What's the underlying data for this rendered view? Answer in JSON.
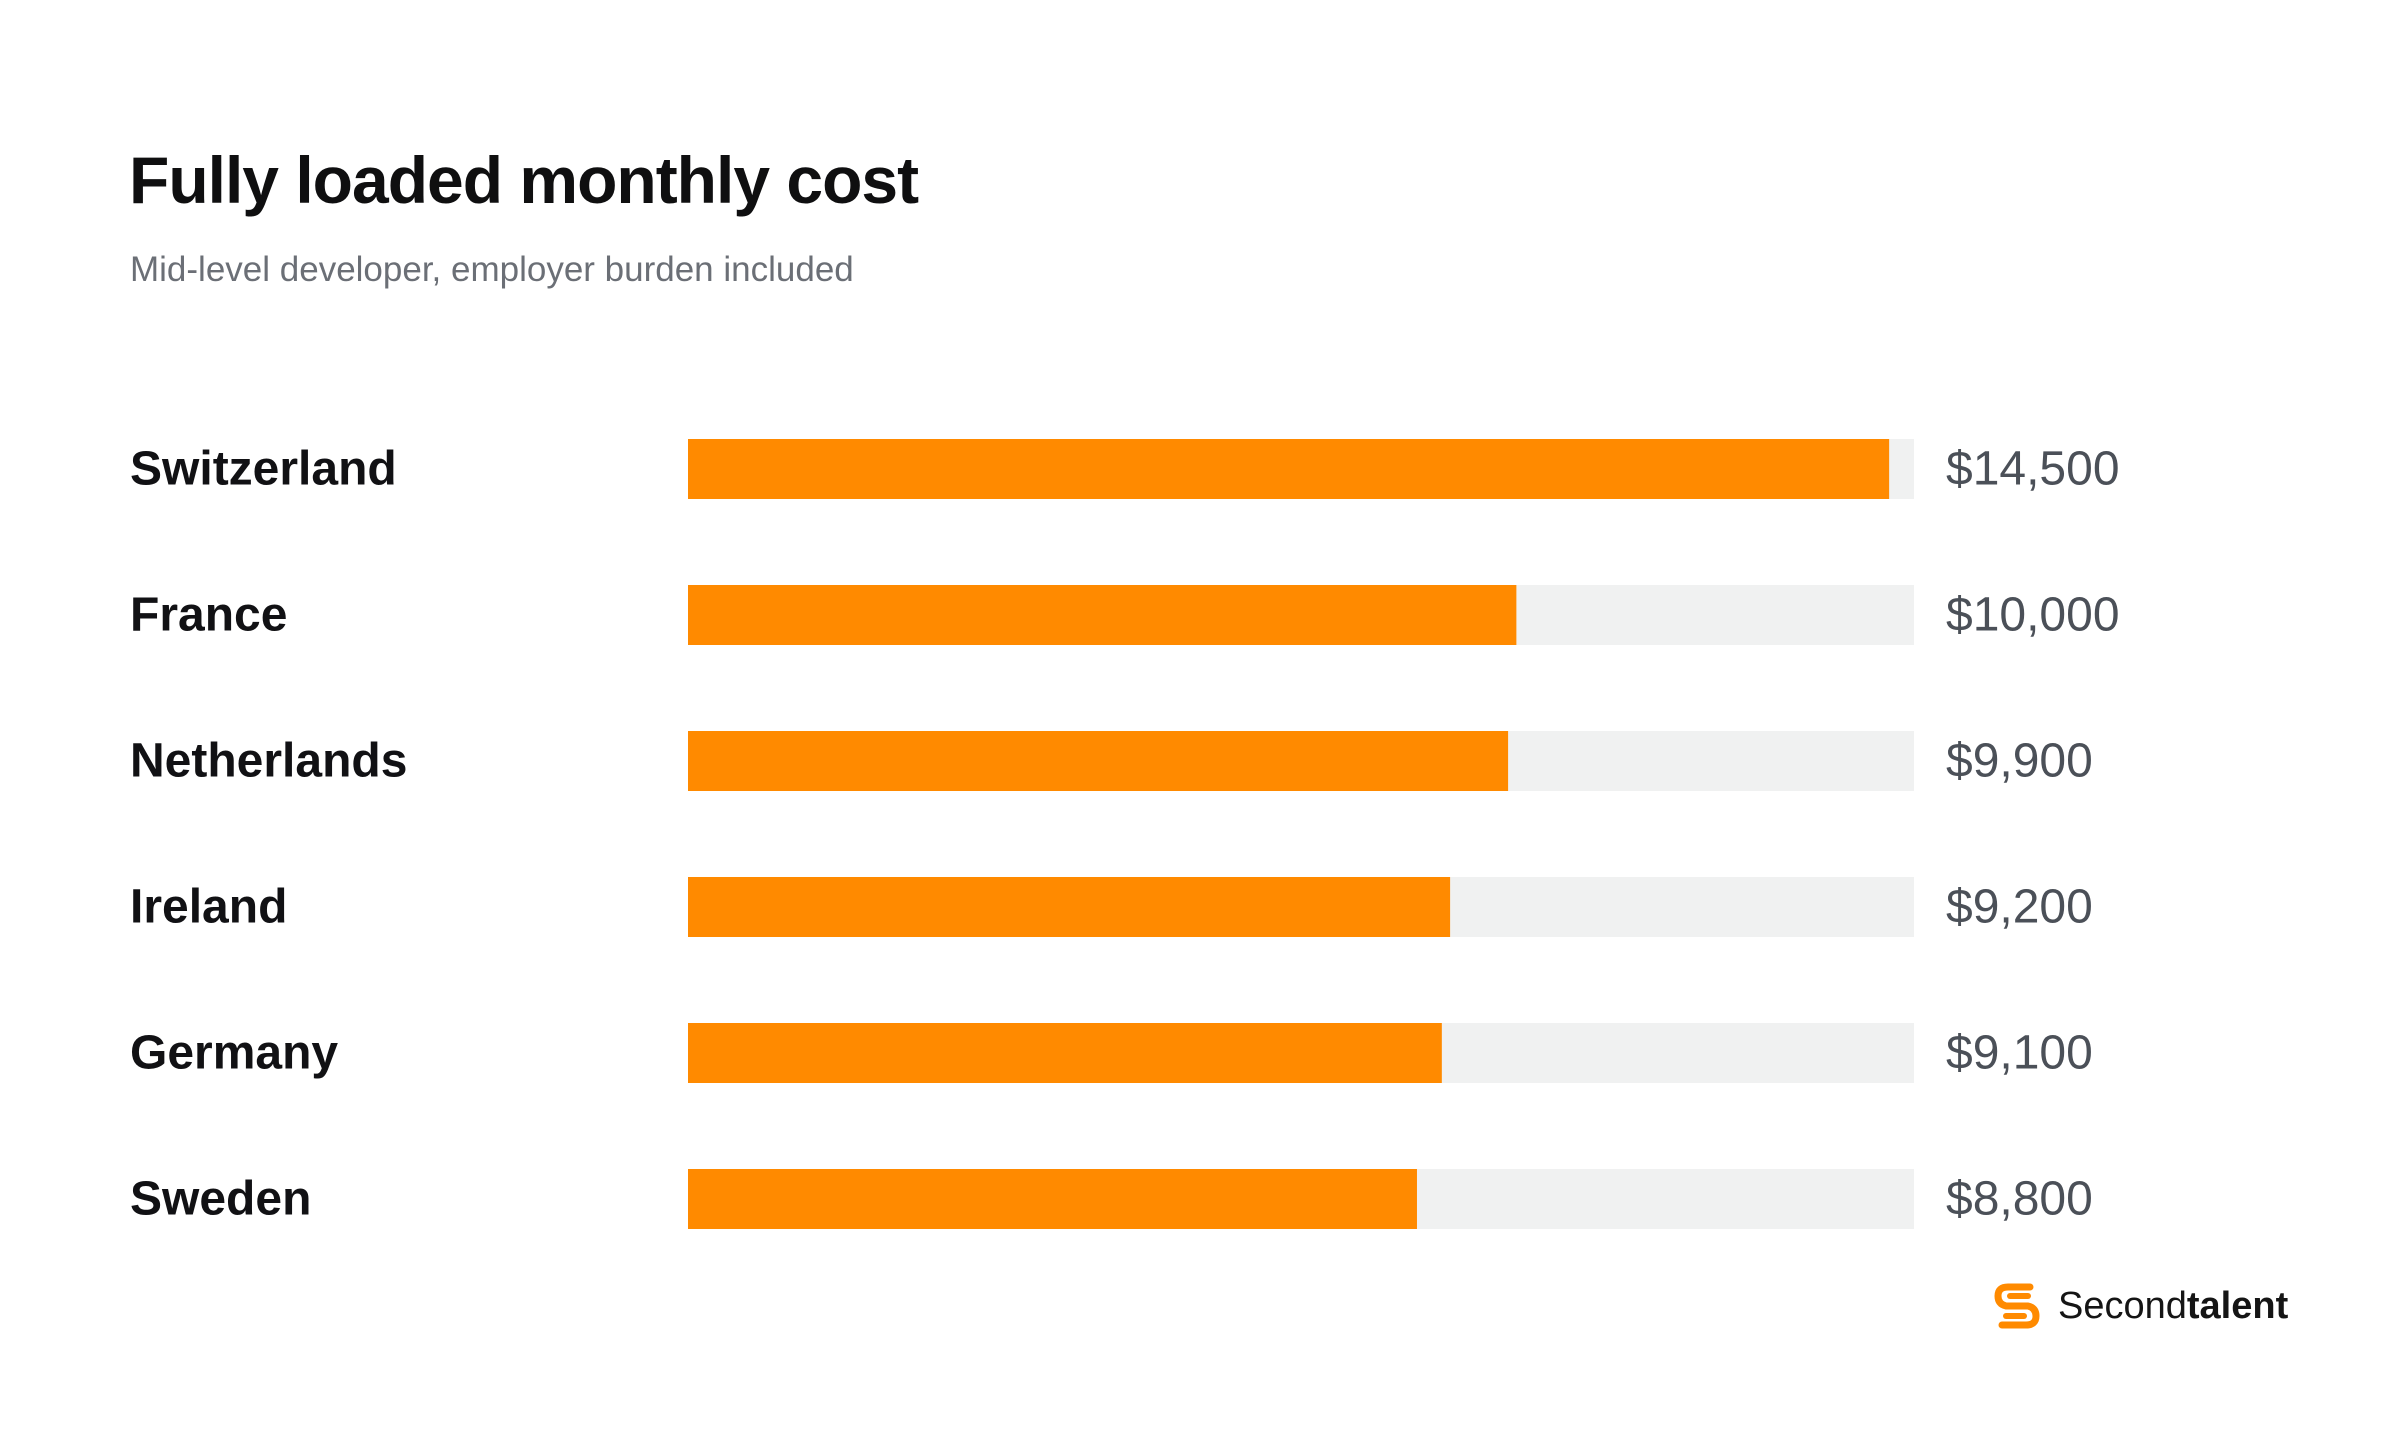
{
  "title": "Fully loaded monthly cost",
  "subtitle": "Mid-level developer, employer burden included",
  "brand": {
    "name_light": "Second",
    "name_bold": "talent",
    "logo_icon": "secondtalent-s-icon",
    "color": "#FF8A00"
  },
  "colors": {
    "bar": "#FF8A00",
    "track": "#F0F1F1"
  },
  "chart_data": {
    "type": "bar",
    "orientation": "horizontal",
    "categories": [
      "Switzerland",
      "France",
      "Netherlands",
      "Ireland",
      "Germany",
      "Sweden"
    ],
    "values": [
      14500,
      10000,
      9900,
      9200,
      9100,
      8800
    ],
    "value_labels": [
      "$14,500",
      "$10,000",
      "$9,900",
      "$9,200",
      "$9,100",
      "$8,800"
    ],
    "xlim": [
      0,
      14800
    ],
    "grid": false,
    "legend": "none"
  }
}
